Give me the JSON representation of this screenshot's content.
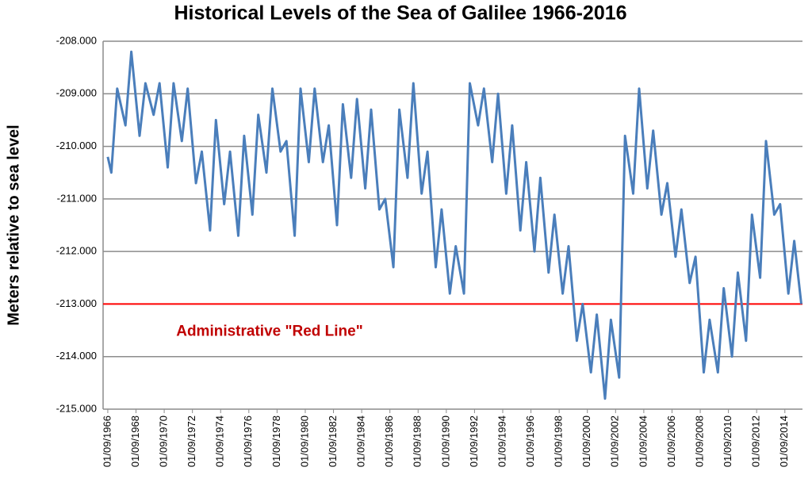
{
  "chart_data": {
    "type": "line",
    "title": "Historical Levels of the Sea of Galilee 1966-2016",
    "y_label": "Meters relative to sea level",
    "color": "#4a7ebb",
    "x": [
      "01/09/1966",
      "01/12/1966",
      "01/05/1967",
      "01/12/1967",
      "01/05/1968",
      "01/12/1968",
      "01/05/1969",
      "01/12/1969",
      "01/05/1970",
      "01/12/1970",
      "01/05/1971",
      "01/12/1971",
      "01/05/1972",
      "01/12/1972",
      "01/05/1973",
      "01/12/1973",
      "01/05/1974",
      "01/12/1974",
      "01/05/1975",
      "01/12/1975",
      "01/05/1976",
      "01/12/1976",
      "01/05/1977",
      "01/12/1977",
      "01/05/1978",
      "01/12/1978",
      "01/05/1979",
      "01/12/1979",
      "01/05/1980",
      "01/12/1980",
      "01/05/1981",
      "01/12/1981",
      "01/05/1982",
      "01/12/1982",
      "01/05/1983",
      "01/12/1983",
      "01/05/1984",
      "01/12/1984",
      "01/05/1985",
      "01/12/1985",
      "01/05/1986",
      "01/12/1986",
      "01/05/1987",
      "01/12/1987",
      "01/05/1988",
      "01/12/1988",
      "01/05/1989",
      "01/12/1989",
      "01/05/1990",
      "01/12/1990",
      "01/05/1991",
      "01/12/1991",
      "01/05/1992",
      "01/12/1992",
      "01/05/1993",
      "01/12/1993",
      "01/05/1994",
      "01/12/1994",
      "01/05/1995",
      "01/12/1995",
      "01/05/1996",
      "01/12/1996",
      "01/05/1997",
      "01/12/1997",
      "01/05/1998",
      "01/12/1998",
      "01/05/1999",
      "01/12/1999",
      "01/05/2000",
      "01/12/2000",
      "01/05/2001",
      "01/12/2001",
      "01/05/2002",
      "01/12/2002",
      "01/05/2003",
      "01/12/2003",
      "01/05/2004",
      "01/12/2004",
      "01/05/2005",
      "01/12/2005",
      "01/05/2006",
      "01/12/2006",
      "01/05/2007",
      "01/12/2007",
      "01/05/2008",
      "01/12/2008",
      "01/05/2009",
      "01/12/2009",
      "01/05/2010",
      "01/12/2010",
      "01/05/2011",
      "01/12/2011",
      "01/05/2012",
      "01/12/2012",
      "01/05/2013",
      "01/12/2013",
      "01/05/2014",
      "01/12/2014",
      "01/05/2015",
      "01/11/2015"
    ],
    "values": [
      -210.2,
      -210.5,
      -208.9,
      -209.6,
      -208.2,
      -209.8,
      -208.8,
      -209.4,
      -208.8,
      -210.4,
      -208.8,
      -209.9,
      -208.9,
      -210.7,
      -210.1,
      -211.6,
      -209.5,
      -211.1,
      -210.1,
      -211.7,
      -209.8,
      -211.3,
      -209.4,
      -210.5,
      -208.9,
      -210.1,
      -209.9,
      -211.7,
      -208.9,
      -210.3,
      -208.9,
      -210.3,
      -209.6,
      -211.5,
      -209.2,
      -210.6,
      -209.1,
      -210.8,
      -209.3,
      -211.2,
      -211.0,
      -212.3,
      -209.3,
      -210.6,
      -208.8,
      -210.9,
      -210.1,
      -212.3,
      -211.2,
      -212.8,
      -211.9,
      -212.8,
      -208.8,
      -209.6,
      -208.9,
      -210.3,
      -209.0,
      -210.9,
      -209.6,
      -211.6,
      -210.3,
      -212.0,
      -210.6,
      -212.4,
      -211.3,
      -212.8,
      -211.9,
      -213.7,
      -213.0,
      -214.3,
      -213.2,
      -214.8,
      -213.3,
      -214.4,
      -209.8,
      -210.9,
      -208.9,
      -210.8,
      -209.7,
      -211.3,
      -210.7,
      -212.1,
      -211.2,
      -212.6,
      -212.1,
      -214.3,
      -213.3,
      -214.3,
      -212.7,
      -214.0,
      -212.4,
      -213.7,
      -211.3,
      -212.5,
      -209.9,
      -211.3,
      -211.1,
      -212.8,
      -211.8,
      -213.0
    ],
    "xlim": [
      "01/05/1966",
      "01/12/2015"
    ],
    "xticks": [
      "01/09/1966",
      "01/09/1968",
      "01/09/1970",
      "01/09/1972",
      "01/09/1974",
      "01/09/1976",
      "01/09/1978",
      "01/09/1980",
      "01/09/1982",
      "01/09/1984",
      "01/09/1986",
      "01/09/1988",
      "01/09/1990",
      "01/09/1992",
      "01/09/1994",
      "01/09/1996",
      "01/09/1998",
      "01/09/2000",
      "01/09/2002",
      "01/09/2004",
      "01/09/2006",
      "01/09/2008",
      "01/09/2010",
      "01/09/2012",
      "01/09/2014"
    ],
    "ylim": [
      -215,
      -208
    ],
    "yticks": [
      {
        "value": -208,
        "label": "-208.000"
      },
      {
        "value": -209,
        "label": "-209.000"
      },
      {
        "value": -210,
        "label": "-210.000"
      },
      {
        "value": -211,
        "label": "-211.000"
      },
      {
        "value": -212,
        "label": "-212.000"
      },
      {
        "value": -213,
        "label": "-213.000"
      },
      {
        "value": -214,
        "label": "-214.000"
      },
      {
        "value": -215,
        "label": "-215.000"
      }
    ],
    "grid": true,
    "reference_line": {
      "value": -213,
      "label": "Administrative \"Red Line\"",
      "color": "#ff0000",
      "label_color": "#c00000"
    }
  }
}
